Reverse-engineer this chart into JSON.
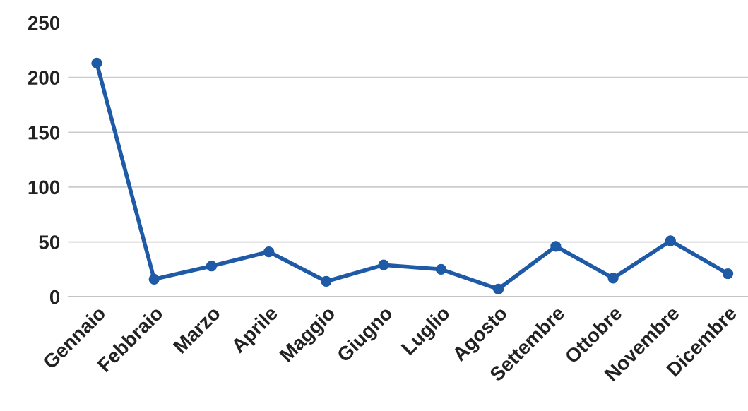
{
  "chart_data": {
    "type": "line",
    "categories": [
      "Gennaio",
      "Febbraio",
      "Marzo",
      "Aprile",
      "Maggio",
      "Giugno",
      "Luglio",
      "Agosto",
      "Settembre",
      "Ottobre",
      "Novembre",
      "Dicembre"
    ],
    "series": [
      {
        "color": "#1f5aa6",
        "values": [
          213,
          16,
          28,
          41,
          14,
          29,
          25,
          7,
          46,
          17,
          51,
          21
        ]
      }
    ],
    "ylim": [
      0,
      250
    ],
    "yticks": [
      0,
      50,
      100,
      150,
      200,
      250
    ],
    "grid": "y",
    "legend": false,
    "marker": "circle",
    "line_style": "solid"
  }
}
